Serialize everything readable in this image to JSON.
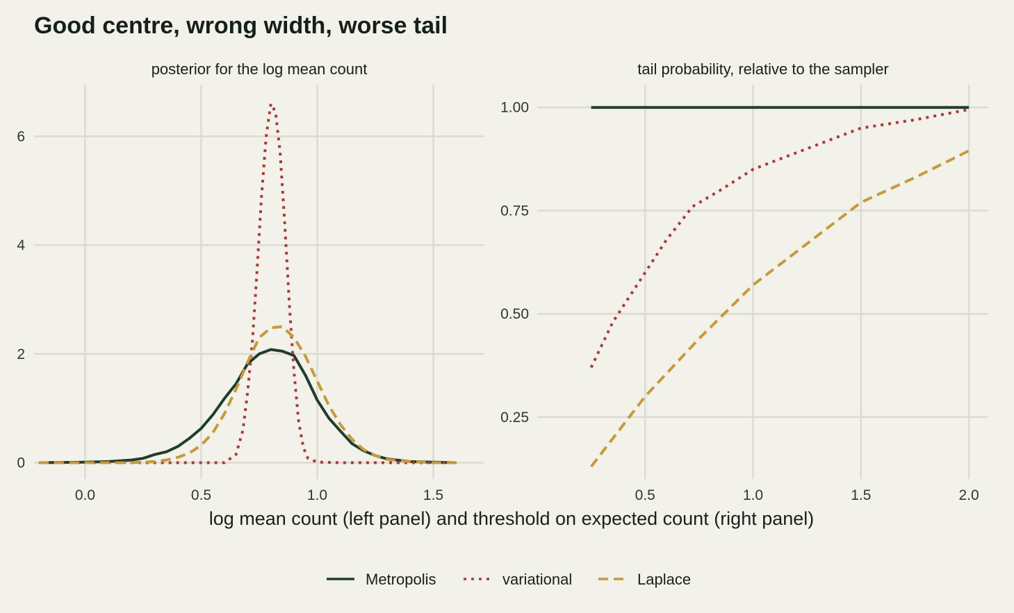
{
  "title": "Good centre, wrong width, worse tail",
  "xlabel": "log mean count (left panel) and threshold on expected count (right panel)",
  "colors": {
    "background": "#f2f1ea",
    "grid": "#dcdbd2",
    "metropolis": "#1f3d2c",
    "variational": "#a83c3a",
    "laplace": "#c69a3a"
  },
  "legend": {
    "placement": "bottom-center",
    "items": [
      {
        "label": "Metropolis",
        "color": "#1f3d2c",
        "dash": "solid"
      },
      {
        "label": "variational",
        "color": "#a83c3a",
        "dash": "dotted"
      },
      {
        "label": "Laplace",
        "color": "#c69a3a",
        "dash": "dashed"
      }
    ]
  },
  "chart_data": [
    {
      "type": "line",
      "title": "posterior for the log mean count",
      "xlim": [
        -0.22,
        1.72
      ],
      "ylim": [
        -0.3,
        6.95
      ],
      "xticks": [
        0.0,
        0.5,
        1.0,
        1.5
      ],
      "xtick_labels": [
        "0.0",
        "0.5",
        "1.0",
        "1.5"
      ],
      "yticks": [
        0,
        2,
        4,
        6
      ],
      "ytick_labels": [
        "0",
        "2",
        "4",
        "6"
      ],
      "grid": true,
      "series": [
        {
          "name": "Metropolis",
          "x": [
            -0.2,
            0.0,
            0.1,
            0.2,
            0.25,
            0.3,
            0.35,
            0.4,
            0.45,
            0.5,
            0.55,
            0.6,
            0.65,
            0.7,
            0.75,
            0.8,
            0.85,
            0.9,
            0.95,
            1.0,
            1.05,
            1.1,
            1.15,
            1.2,
            1.25,
            1.3,
            1.4,
            1.5,
            1.6
          ],
          "y": [
            0.0,
            0.01,
            0.02,
            0.05,
            0.08,
            0.15,
            0.2,
            0.3,
            0.45,
            0.63,
            0.88,
            1.18,
            1.45,
            1.82,
            2.0,
            2.08,
            2.05,
            1.97,
            1.6,
            1.15,
            0.82,
            0.58,
            0.35,
            0.22,
            0.13,
            0.07,
            0.02,
            0.01,
            0.0
          ]
        },
        {
          "name": "variational",
          "x": [
            -0.2,
            0.0,
            0.3,
            0.5,
            0.6,
            0.65,
            0.68,
            0.7,
            0.72,
            0.74,
            0.76,
            0.78,
            0.8,
            0.82,
            0.84,
            0.86,
            0.88,
            0.9,
            0.92,
            0.94,
            0.96,
            1.0,
            1.1,
            1.2,
            1.4,
            1.6
          ],
          "y": [
            0.0,
            0.0,
            0.0,
            0.0,
            0.0,
            0.15,
            0.6,
            1.3,
            2.2,
            3.5,
            4.9,
            6.0,
            6.6,
            6.45,
            5.7,
            4.4,
            2.9,
            1.65,
            0.75,
            0.28,
            0.08,
            0.01,
            0.0,
            0.0,
            0.0,
            0.0
          ]
        },
        {
          "name": "Laplace",
          "x": [
            -0.2,
            0.0,
            0.2,
            0.3,
            0.35,
            0.4,
            0.45,
            0.5,
            0.55,
            0.6,
            0.65,
            0.7,
            0.75,
            0.8,
            0.85,
            0.9,
            0.95,
            1.0,
            1.05,
            1.1,
            1.15,
            1.2,
            1.25,
            1.3,
            1.4,
            1.5,
            1.6
          ],
          "y": [
            0.0,
            0.0,
            0.0,
            0.02,
            0.05,
            0.1,
            0.18,
            0.32,
            0.55,
            0.9,
            1.35,
            1.85,
            2.3,
            2.48,
            2.5,
            2.3,
            1.95,
            1.5,
            1.05,
            0.7,
            0.43,
            0.24,
            0.13,
            0.06,
            0.02,
            0.0,
            0.0
          ]
        }
      ]
    },
    {
      "type": "line",
      "title": "tail probability, relative to the sampler",
      "xlim": [
        0.0,
        2.09
      ],
      "ylim": [
        0.1,
        1.055
      ],
      "xticks": [
        0.5,
        1.0,
        1.5,
        2.0
      ],
      "xtick_labels": [
        "0.5",
        "1.0",
        "1.5",
        "2.0"
      ],
      "yticks": [
        0.25,
        0.5,
        0.75,
        1.0
      ],
      "ytick_labels": [
        "0.25",
        "0.50",
        "0.75",
        "1.00"
      ],
      "grid": true,
      "series": [
        {
          "name": "Metropolis",
          "x": [
            0.25,
            2.0
          ],
          "y": [
            1.0,
            1.0
          ]
        },
        {
          "name": "variational",
          "x": [
            0.25,
            0.35,
            0.5,
            0.6,
            0.72,
            0.85,
            1.0,
            1.2,
            1.5,
            1.75,
            2.0
          ],
          "y": [
            0.37,
            0.48,
            0.6,
            0.68,
            0.76,
            0.8,
            0.85,
            0.89,
            0.95,
            0.97,
            0.995
          ]
        },
        {
          "name": "Laplace",
          "x": [
            0.25,
            0.5,
            0.75,
            1.0,
            1.25,
            1.5,
            1.75,
            2.0
          ],
          "y": [
            0.13,
            0.3,
            0.44,
            0.57,
            0.67,
            0.77,
            0.83,
            0.895
          ]
        }
      ]
    }
  ]
}
